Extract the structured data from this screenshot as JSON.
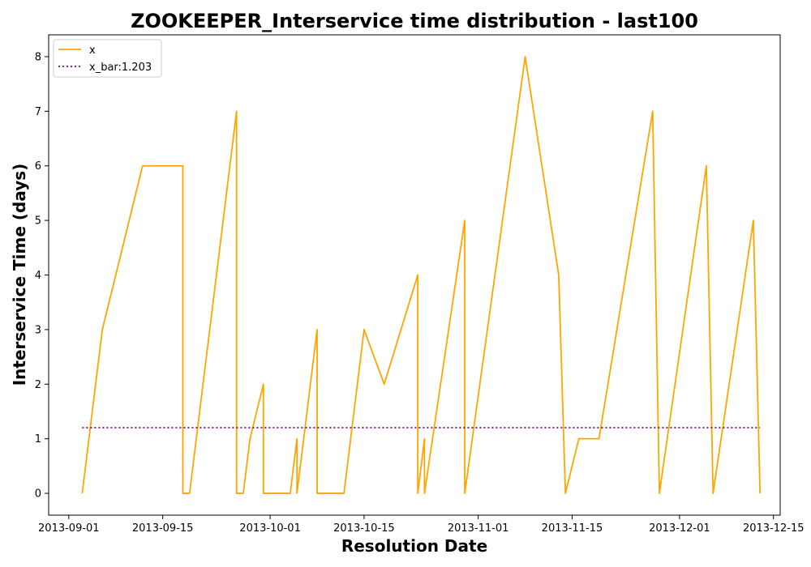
{
  "chart_data": {
    "type": "line",
    "title": "ZOOKEEPER_Interservice time distribution - last100",
    "xlabel": "Resolution Date",
    "ylabel": "Interservice Time (days)",
    "x_ticks": [
      "2013-09-01",
      "2013-09-15",
      "2013-10-01",
      "2013-10-15",
      "2013-11-01",
      "2013-11-15",
      "2013-12-01",
      "2013-12-15"
    ],
    "y_ticks": [
      "0",
      "1",
      "2",
      "3",
      "4",
      "5",
      "6",
      "7",
      "8"
    ],
    "xlim": [
      "2013-08-29",
      "2013-12-16"
    ],
    "ylim": [
      -0.4,
      8.4
    ],
    "legend_position": "top-left",
    "grid": false,
    "series": [
      {
        "name": "x",
        "color": "#ffa500",
        "style": "solid",
        "x": [
          "2013-09-03",
          "2013-09-06",
          "2013-09-12",
          "2013-09-18",
          "2013-09-18",
          "2013-09-19",
          "2013-09-26",
          "2013-09-26",
          "2013-09-27",
          "2013-09-28",
          "2013-09-30",
          "2013-09-30",
          "2013-10-04",
          "2013-10-05",
          "2013-10-05",
          "2013-10-08",
          "2013-10-08",
          "2013-10-12",
          "2013-10-15",
          "2013-10-18",
          "2013-10-23",
          "2013-10-23",
          "2013-10-24",
          "2013-10-24",
          "2013-10-30",
          "2013-10-30",
          "2013-11-08",
          "2013-11-13",
          "2013-11-14",
          "2013-11-16",
          "2013-11-19",
          "2013-11-27",
          "2013-11-28",
          "2013-12-05",
          "2013-12-06",
          "2013-12-12",
          "2013-12-13"
        ],
        "values": [
          0,
          3,
          6,
          6,
          0,
          0,
          7,
          0,
          0,
          1,
          2,
          0,
          0,
          1,
          0,
          3,
          0,
          0,
          3,
          2,
          4,
          0,
          1,
          0,
          5,
          0,
          8,
          4,
          0,
          1,
          1,
          7,
          0,
          6,
          0,
          5,
          0
        ]
      },
      {
        "name": "x_bar:1.203",
        "color": "#800080",
        "style": "dotted",
        "x": [
          "2013-09-03",
          "2013-12-13"
        ],
        "values": [
          1.203,
          1.203
        ]
      }
    ]
  }
}
